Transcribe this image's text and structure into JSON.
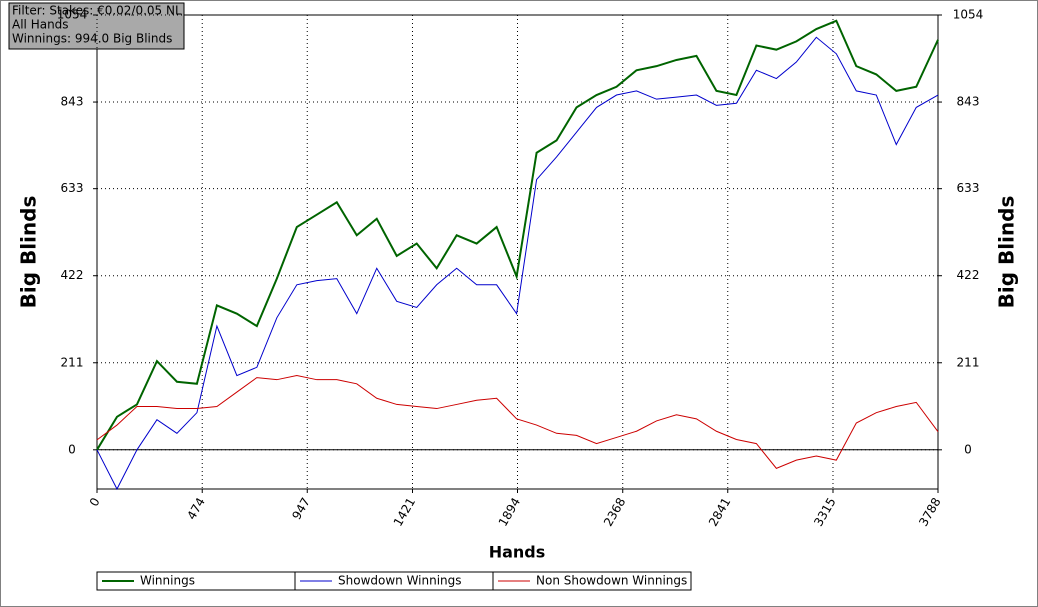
{
  "chart_data": {
    "type": "line",
    "annotation": [
      "Filter: Stakes: €0.02/0.05 NL",
      "All Hands",
      "Winnings: 994.0 Big Blinds"
    ],
    "x_label": "Hands",
    "y_label": "Big Blinds",
    "y2_label": "Big Blinds",
    "x": [
      0,
      90,
      180,
      270,
      360,
      450,
      540,
      630,
      720,
      810,
      900,
      990,
      1080,
      1170,
      1260,
      1350,
      1440,
      1530,
      1620,
      1710,
      1800,
      1890,
      1980,
      2070,
      2160,
      2250,
      2340,
      2430,
      2520,
      2610,
      2700,
      2790,
      2880,
      2970,
      3060,
      3150,
      3240,
      3330,
      3420,
      3510,
      3600,
      3690,
      3788
    ],
    "series": [
      {
        "name": "Winnings",
        "color": "#006400",
        "values": [
          0,
          80,
          110,
          215,
          165,
          160,
          350,
          330,
          300,
          415,
          540,
          570,
          600,
          520,
          560,
          470,
          500,
          440,
          520,
          500,
          540,
          420,
          720,
          750,
          830,
          860,
          880,
          920,
          930,
          945,
          955,
          870,
          860,
          980,
          970,
          990,
          1020,
          1040,
          930,
          910,
          870,
          880,
          994
        ]
      },
      {
        "name": "Showdown Winnings",
        "color": "#0000cc",
        "values": [
          0,
          -95,
          0,
          73,
          40,
          90,
          300,
          180,
          200,
          320,
          400,
          410,
          415,
          330,
          440,
          360,
          345,
          400,
          440,
          400,
          400,
          330,
          655,
          710,
          770,
          830,
          860,
          870,
          850,
          855,
          860,
          835,
          840,
          920,
          900,
          940,
          1000,
          960,
          870,
          860,
          740,
          830,
          860
        ]
      },
      {
        "name": "Non Showdown Winnings",
        "color": "#cc0000",
        "values": [
          24,
          60,
          105,
          105,
          100,
          100,
          105,
          140,
          175,
          170,
          180,
          170,
          170,
          160,
          125,
          110,
          105,
          100,
          110,
          120,
          125,
          75,
          60,
          40,
          35,
          15,
          30,
          45,
          70,
          85,
          75,
          45,
          25,
          15,
          -45,
          -25,
          -15,
          -25,
          65,
          90,
          105,
          115,
          44
        ]
      }
    ],
    "xlim": [
      0,
      3788
    ],
    "xticks": [
      0,
      474,
      947,
      1421,
      1894,
      2368,
      2841,
      3315,
      3788
    ],
    "ylim": [
      -95,
      1054
    ],
    "yticks": [
      0,
      211,
      422,
      633,
      843,
      1054
    ],
    "y2lim": [
      -95,
      1054
    ],
    "y2ticks": [
      0,
      211,
      422,
      633,
      843,
      1054
    ],
    "grid": true
  }
}
